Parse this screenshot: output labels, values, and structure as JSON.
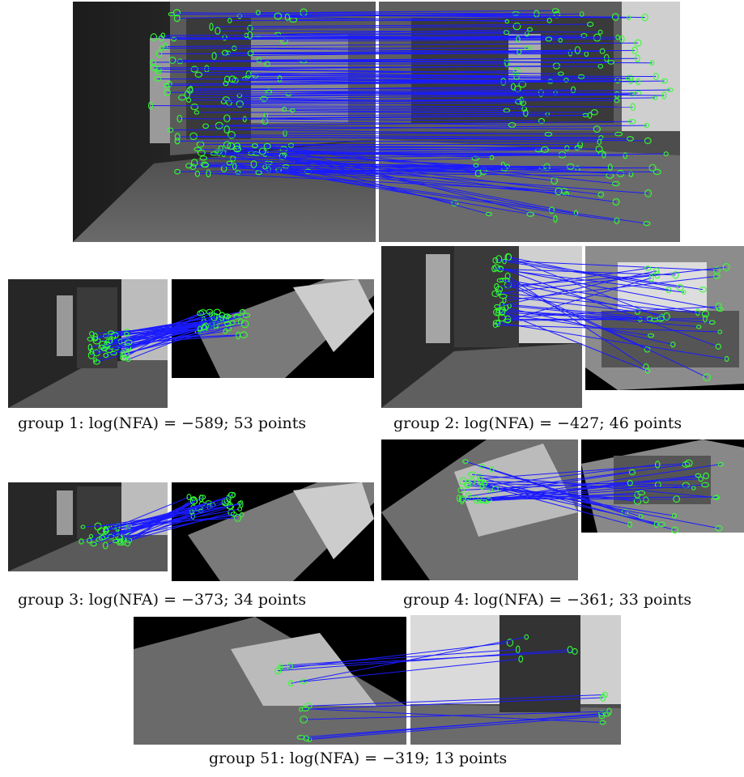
{
  "figure": {
    "captions": [
      {
        "id": "g1",
        "text": "group 1: log(NFA) = −589; 53 points"
      },
      {
        "id": "g2",
        "text": "group 2: log(NFA) = −427; 46 points"
      },
      {
        "id": "g3",
        "text": "group 3: log(NFA) = −373; 34 points"
      },
      {
        "id": "g4",
        "text": "group 4: log(NFA) = −361; 33 points"
      },
      {
        "id": "g51",
        "text": "group 51: log(NFA) = −319; 13 points"
      }
    ],
    "colors": {
      "match_line": "#1a1aff",
      "keypoint": "#33ff33",
      "background": "#000000"
    }
  }
}
